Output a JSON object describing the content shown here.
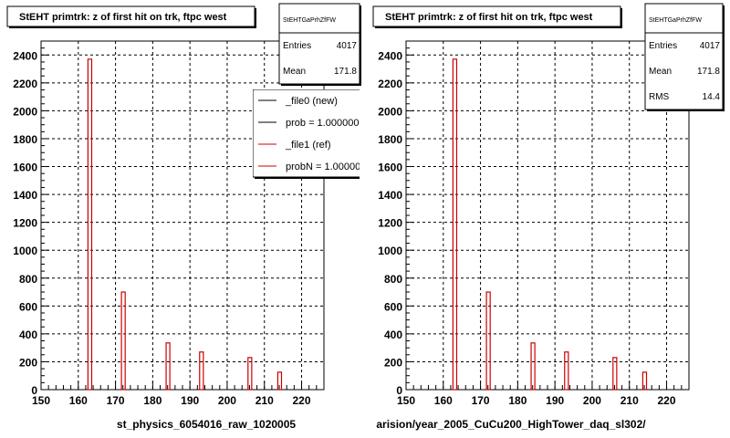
{
  "footer_text": "",
  "chart_data": [
    {
      "type": "bar",
      "title": "StEHT primtrk: z of first hit on trk, ftpc west",
      "xlabel": "st_physics_6054016_raw_1020005",
      "xlim": [
        150,
        226
      ],
      "ylim": [
        0,
        2500
      ],
      "xticks": [
        150,
        160,
        170,
        180,
        190,
        200,
        210,
        220
      ],
      "yticks": [
        0,
        200,
        400,
        600,
        800,
        1000,
        1200,
        1400,
        1600,
        1800,
        2000,
        2200,
        2400
      ],
      "grid": true,
      "bars": [
        {
          "x": 163,
          "value": 2370
        },
        {
          "x": 172,
          "value": 700
        },
        {
          "x": 184,
          "value": 335
        },
        {
          "x": 193,
          "value": 270
        },
        {
          "x": 206,
          "value": 230
        },
        {
          "x": 214,
          "value": 125
        }
      ],
      "color": "#cc0000",
      "stats": {
        "name": "StEHTGaPrhZfFW",
        "rows": [
          {
            "label": "Entries",
            "value": "4017"
          },
          {
            "label": "Mean",
            "value": "171.8"
          }
        ]
      },
      "legend": {
        "placement": "top-right",
        "entries": [
          {
            "label": "_file0 (new)",
            "color": "#000000"
          },
          {
            "label": "prob = 1.000000",
            "color": "#000000"
          },
          {
            "label": "_file1 (ref)",
            "color": "#cc0000"
          },
          {
            "label": "probN = 1.000000",
            "color": "#cc0000"
          }
        ]
      }
    },
    {
      "type": "bar",
      "title": "StEHT primtrk: z of first hit on trk, ftpc west",
      "xlabel": "arision/year_2005_CuCu200_HighTower_daq_sl302/",
      "xlim": [
        150,
        226
      ],
      "ylim": [
        0,
        2500
      ],
      "xticks": [
        150,
        160,
        170,
        180,
        190,
        200,
        210,
        220
      ],
      "yticks": [
        0,
        200,
        400,
        600,
        800,
        1000,
        1200,
        1400,
        1600,
        1800,
        2000,
        2200,
        2400
      ],
      "grid": true,
      "bars": [
        {
          "x": 163,
          "value": 2370
        },
        {
          "x": 172,
          "value": 700
        },
        {
          "x": 184,
          "value": 335
        },
        {
          "x": 193,
          "value": 270
        },
        {
          "x": 206,
          "value": 230
        },
        {
          "x": 214,
          "value": 125
        }
      ],
      "color": "#cc0000",
      "stats": {
        "name": "StEHTGaPrhZfFW",
        "rows": [
          {
            "label": "Entries",
            "value": "4017"
          },
          {
            "label": "Mean",
            "value": "171.8"
          },
          {
            "label": "RMS",
            "value": "14.4"
          }
        ]
      }
    }
  ]
}
